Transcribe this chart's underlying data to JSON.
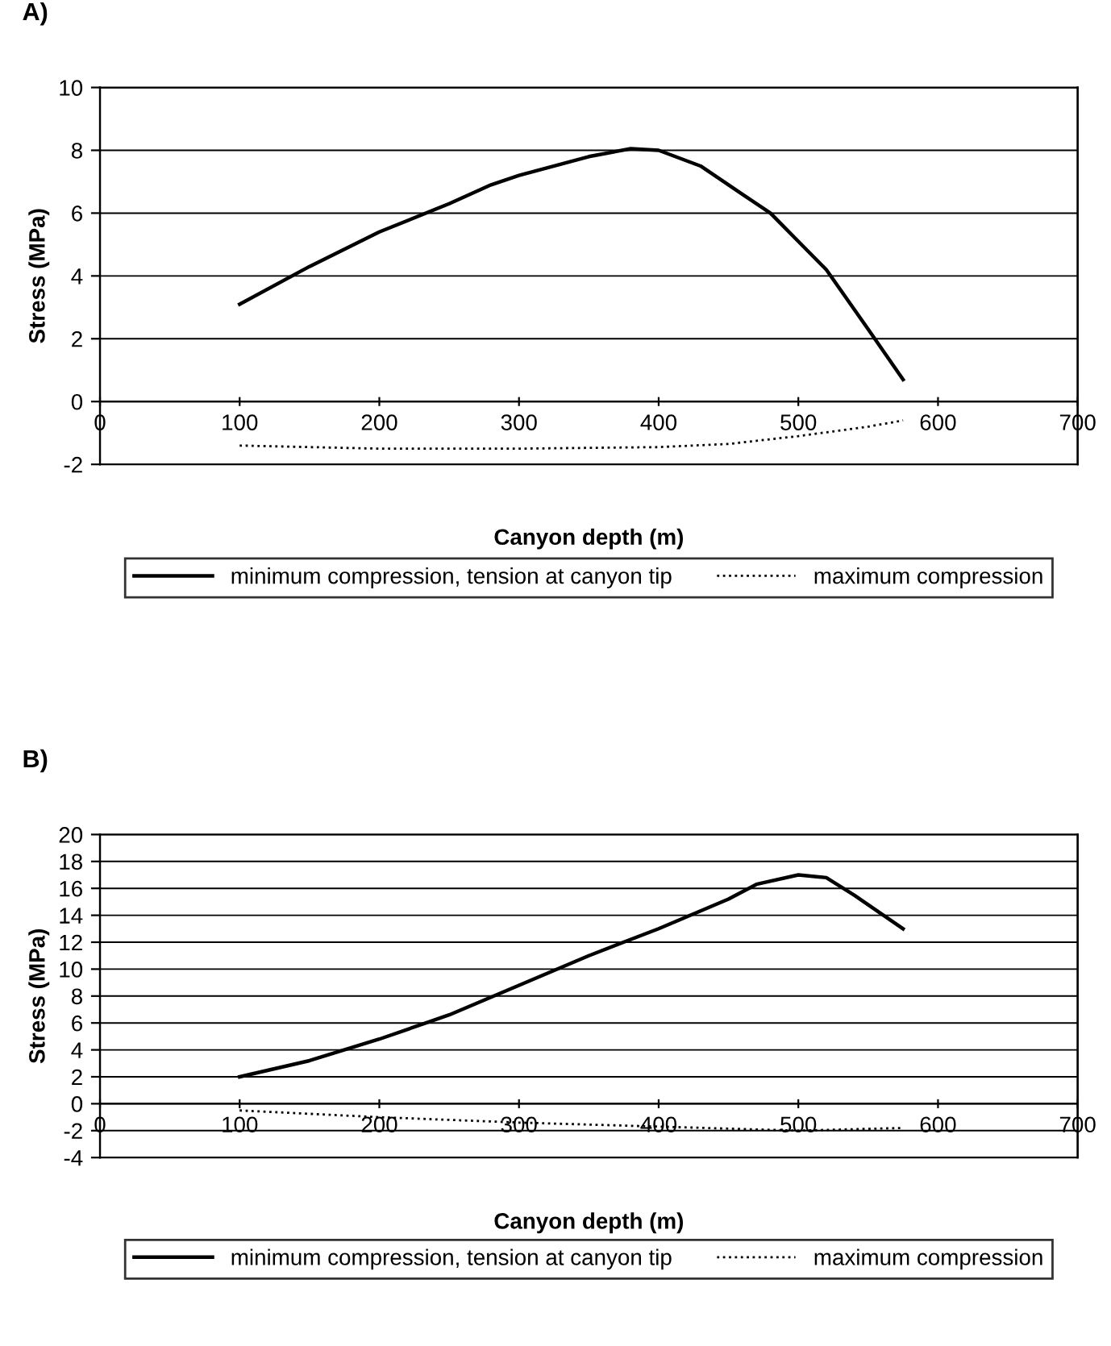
{
  "chart_data": [
    {
      "type": "line",
      "title": "A)",
      "xlabel": "Canyon depth (m)",
      "ylabel": "Stress (MPa)",
      "xlim": [
        0,
        700
      ],
      "xticks": [
        0,
        100,
        200,
        300,
        400,
        500,
        600,
        700
      ],
      "ylim": [
        -2,
        10
      ],
      "yticks": [
        -2,
        0,
        2,
        4,
        6,
        8,
        10
      ],
      "grid": "y",
      "legend": "bottom",
      "series": [
        {
          "name": "minimum compression, tension at canyon tip",
          "color": "#000000",
          "line_style": "solid",
          "x": [
            100,
            150,
            200,
            250,
            280,
            300,
            350,
            380,
            400,
            430,
            460,
            480,
            500,
            520,
            550,
            575
          ],
          "values": [
            3.1,
            4.3,
            5.4,
            6.3,
            6.9,
            7.2,
            7.8,
            8.05,
            8.0,
            7.5,
            6.6,
            6.0,
            5.1,
            4.2,
            2.3,
            0.7
          ]
        },
        {
          "name": "maximum compression",
          "color": "#000000",
          "line_style": "dotted",
          "x": [
            100,
            200,
            300,
            400,
            450,
            500,
            550,
            575
          ],
          "values": [
            -1.4,
            -1.5,
            -1.5,
            -1.45,
            -1.35,
            -1.1,
            -0.8,
            -0.6
          ]
        }
      ]
    },
    {
      "type": "line",
      "title": "B)",
      "xlabel": "Canyon depth (m)",
      "ylabel": "Stress (MPa)",
      "xlim": [
        0,
        700
      ],
      "xticks": [
        0,
        100,
        200,
        300,
        400,
        500,
        600,
        700
      ],
      "ylim": [
        -4,
        20
      ],
      "yticks": [
        -4,
        -2,
        0,
        2,
        4,
        6,
        8,
        10,
        12,
        14,
        16,
        18,
        20
      ],
      "grid": "y",
      "legend": "bottom",
      "series": [
        {
          "name": "minimum compression, tension at canyon tip",
          "color": "#000000",
          "line_style": "solid",
          "x": [
            100,
            150,
            200,
            250,
            300,
            350,
            400,
            450,
            470,
            500,
            520,
            540,
            575
          ],
          "values": [
            2.0,
            3.2,
            4.8,
            6.6,
            8.8,
            11.0,
            13.0,
            15.2,
            16.3,
            17.0,
            16.8,
            15.5,
            13.0
          ]
        },
        {
          "name": "maximum compression",
          "color": "#000000",
          "line_style": "dotted",
          "x": [
            100,
            200,
            300,
            400,
            500,
            575
          ],
          "values": [
            -0.5,
            -1.0,
            -1.4,
            -1.7,
            -2.0,
            -1.8
          ]
        }
      ]
    }
  ]
}
